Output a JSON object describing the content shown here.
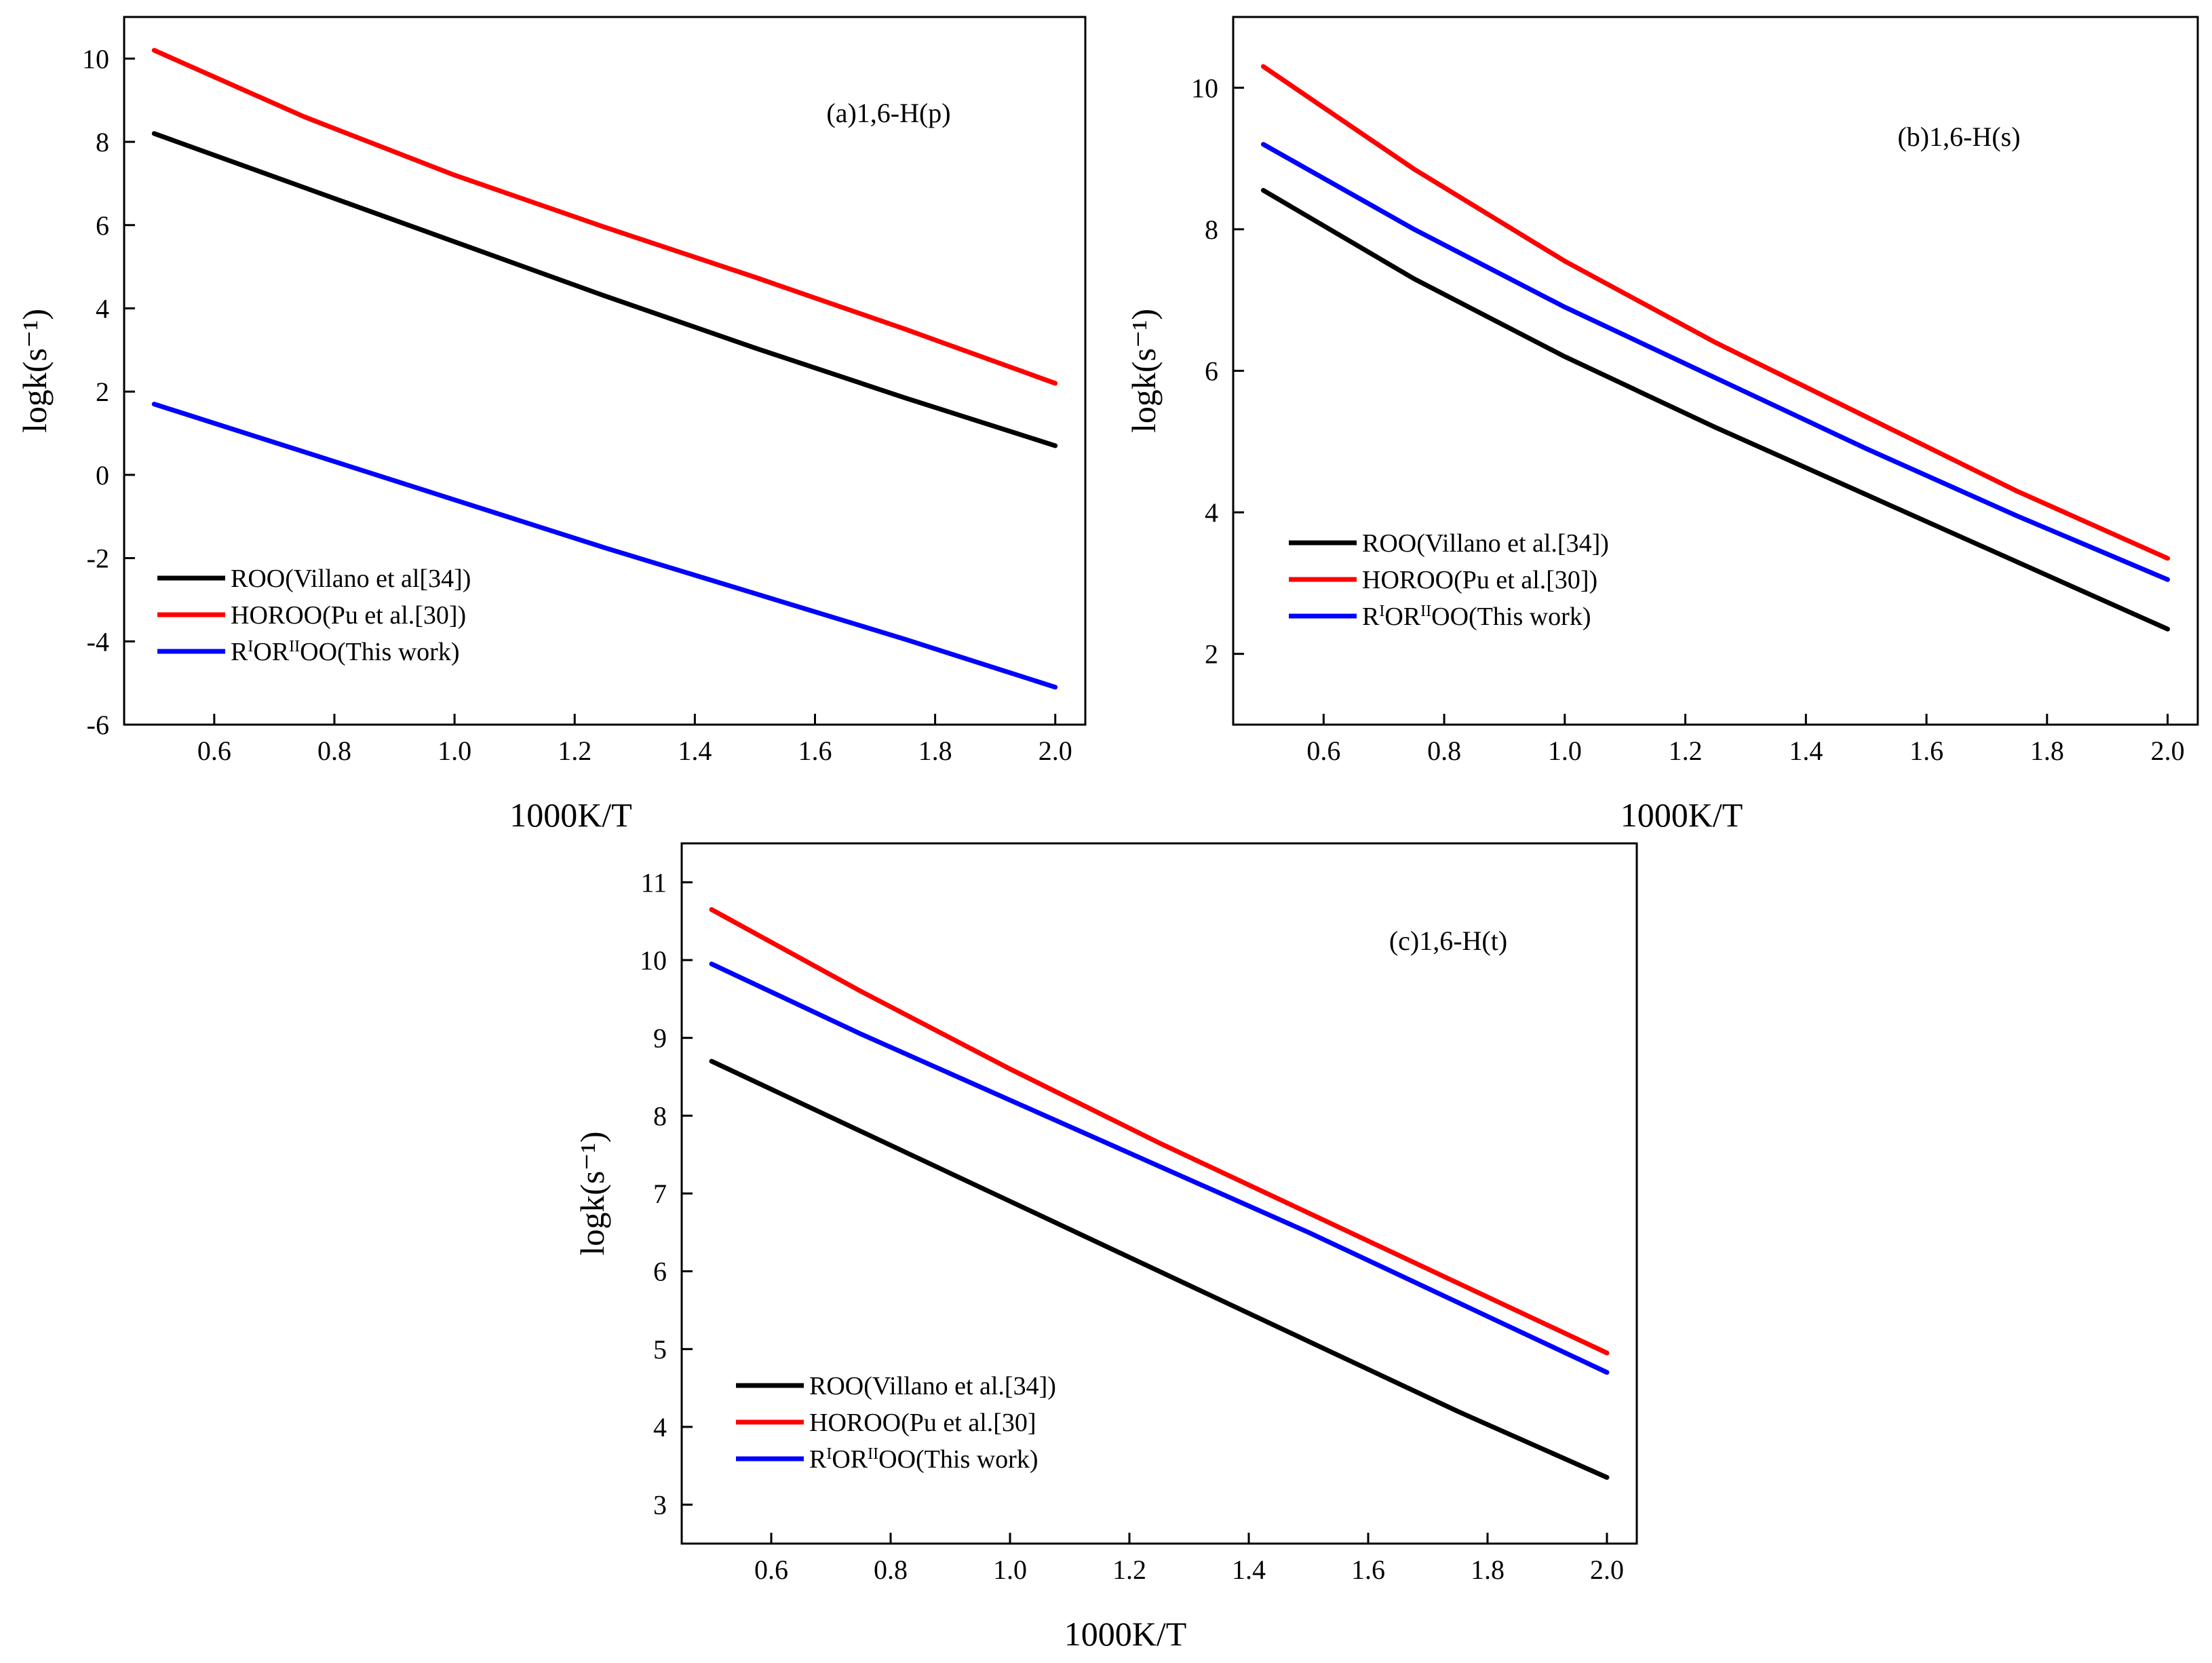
{
  "chart_data": [
    {
      "id": "a",
      "type": "line",
      "annotation": "(a)1,6-H(p)",
      "xlabel": "1000K/T",
      "ylabel": "logk(s⁻¹)",
      "xlim": [
        0.45,
        2.05
      ],
      "ylim": [
        -6,
        11
      ],
      "x_ticks": [
        "0.6",
        "0.8",
        "1.0",
        "1.2",
        "1.4",
        "1.6",
        "1.8",
        "2.0"
      ],
      "y_ticks": [
        "-6",
        "-4",
        "-2",
        "0",
        "2",
        "4",
        "6",
        "8",
        "10"
      ],
      "legend_position": "bottom-left",
      "series": [
        {
          "name": "ROO(Villano et al[34])",
          "color": "#000000",
          "x": [
            0.5,
            0.75,
            1.0,
            1.25,
            1.5,
            1.75,
            2.0
          ],
          "y": [
            8.2,
            6.9,
            5.6,
            4.3,
            3.05,
            1.85,
            0.7
          ]
        },
        {
          "name": "HOROO(Pu et al.[30])",
          "color": "#ff0000",
          "x": [
            0.5,
            0.75,
            1.0,
            1.25,
            1.5,
            1.75,
            2.0
          ],
          "y": [
            10.2,
            8.6,
            7.2,
            5.95,
            4.75,
            3.5,
            2.2
          ]
        },
        {
          "name": "RIORIIOO(This work)",
          "color": "#0000ff",
          "x": [
            0.5,
            0.75,
            1.0,
            1.25,
            1.5,
            1.75,
            2.0
          ],
          "y": [
            1.7,
            0.55,
            -0.6,
            -1.75,
            -2.85,
            -3.95,
            -5.1
          ]
        }
      ]
    },
    {
      "id": "b",
      "type": "line",
      "annotation": "(b)1,6-H(s)",
      "xlabel": "1000K/T",
      "ylabel": "logk(s⁻¹)",
      "xlim": [
        0.45,
        2.05
      ],
      "ylim": [
        1,
        11
      ],
      "x_ticks": [
        "0.6",
        "0.8",
        "1.0",
        "1.2",
        "1.4",
        "1.6",
        "1.8",
        "2.0"
      ],
      "y_ticks": [
        "2",
        "4",
        "6",
        "8",
        "10"
      ],
      "legend_position": "bottom-left",
      "series": [
        {
          "name": "ROO(Villano et al.[34])",
          "color": "#000000",
          "x": [
            0.5,
            0.75,
            1.0,
            1.25,
            1.5,
            1.75,
            2.0
          ],
          "y": [
            8.55,
            7.3,
            6.2,
            5.2,
            4.25,
            3.3,
            2.35
          ]
        },
        {
          "name": "HOROO(Pu et al.[30])",
          "color": "#ff0000",
          "x": [
            0.5,
            0.75,
            1.0,
            1.25,
            1.5,
            1.75,
            2.0
          ],
          "y": [
            10.3,
            8.85,
            7.55,
            6.4,
            5.35,
            4.3,
            3.35
          ]
        },
        {
          "name": "RIORIIOO(This work)",
          "color": "#0000ff",
          "x": [
            0.5,
            0.75,
            1.0,
            1.25,
            1.5,
            1.75,
            2.0
          ],
          "y": [
            9.2,
            8.0,
            6.9,
            5.9,
            4.9,
            3.95,
            3.05
          ]
        }
      ]
    },
    {
      "id": "c",
      "type": "line",
      "annotation": "(c)1,6-H(t)",
      "xlabel": "1000K/T",
      "ylabel": "logk(s⁻¹)",
      "xlim": [
        0.45,
        2.05
      ],
      "ylim": [
        2.5,
        11.5
      ],
      "x_ticks": [
        "0.6",
        "0.8",
        "1.0",
        "1.2",
        "1.4",
        "1.6",
        "1.8",
        "2.0"
      ],
      "y_ticks": [
        "3",
        "4",
        "5",
        "6",
        "7",
        "8",
        "9",
        "10",
        "11"
      ],
      "legend_position": "bottom-left",
      "series": [
        {
          "name": "ROO(Villano et al.[34])",
          "color": "#000000",
          "x": [
            0.5,
            0.75,
            1.0,
            1.25,
            1.5,
            1.75,
            2.0
          ],
          "y": [
            8.7,
            7.8,
            6.9,
            6.0,
            5.1,
            4.2,
            3.35
          ]
        },
        {
          "name": "HOROO(Pu et al.[30]",
          "color": "#ff0000",
          "x": [
            0.5,
            0.75,
            1.0,
            1.25,
            1.5,
            1.75,
            2.0
          ],
          "y": [
            10.65,
            9.6,
            8.6,
            7.65,
            6.75,
            5.85,
            4.95
          ]
        },
        {
          "name": "RIORIIOO(This work)",
          "color": "#0000ff",
          "x": [
            0.5,
            0.75,
            1.0,
            1.25,
            1.5,
            1.75,
            2.0
          ],
          "y": [
            9.95,
            9.05,
            8.2,
            7.35,
            6.5,
            5.6,
            4.7
          ]
        }
      ]
    }
  ]
}
